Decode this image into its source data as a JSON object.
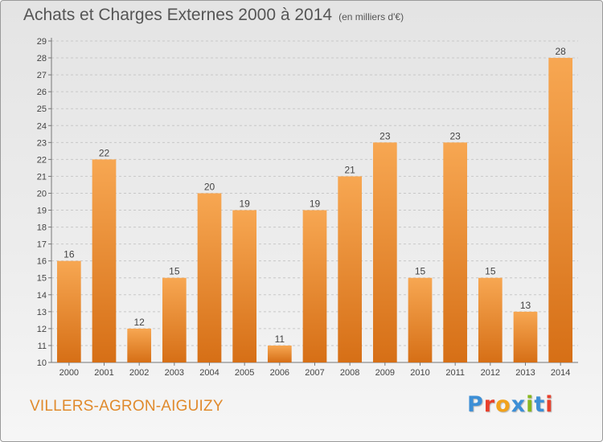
{
  "page": {
    "title": "Achats et Charges Externes 2000 à 2014",
    "subtitle": "(en milliers d'€)",
    "commune": "VILLERS-AGRON-AIGUIZY",
    "logo_text": "Proxiti",
    "logo_colors": [
      "#3d8fd6",
      "#e8402c",
      "#f1a21c",
      "#3d8fd6",
      "#88b820",
      "#3d8fd6",
      "#e8402c"
    ]
  },
  "chart_data": {
    "type": "bar",
    "categories": [
      "2000",
      "2001",
      "2002",
      "2003",
      "2004",
      "2005",
      "2006",
      "2007",
      "2008",
      "2009",
      "2010",
      "2011",
      "2012",
      "2013",
      "2014"
    ],
    "values": [
      16,
      22,
      12,
      15,
      20,
      19,
      11,
      19,
      21,
      23,
      15,
      23,
      15,
      13,
      28
    ],
    "title": "Achats et Charges Externes 2000 à 2014",
    "ylim": [
      10,
      29
    ],
    "yticks": [
      10,
      11,
      12,
      13,
      14,
      15,
      16,
      17,
      18,
      19,
      20,
      21,
      22,
      23,
      24,
      25,
      26,
      27,
      28,
      29
    ],
    "grid": true,
    "bar_color_light": "#f7a752",
    "bar_color_dark": "#d66f16"
  }
}
